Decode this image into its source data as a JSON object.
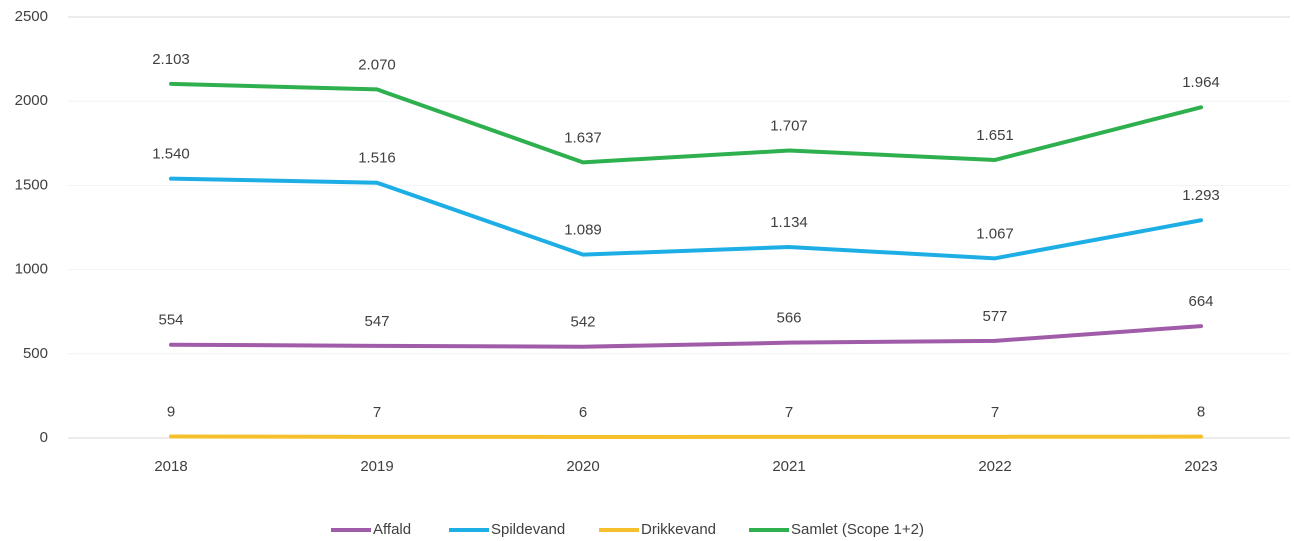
{
  "chart_data": {
    "type": "line",
    "categories": [
      "2018",
      "2019",
      "2020",
      "2021",
      "2022",
      "2023"
    ],
    "series": [
      {
        "name": "Affald",
        "color": "#a05ca8",
        "values": [
          554,
          547,
          542,
          566,
          577,
          664
        ]
      },
      {
        "name": "Spildevand",
        "color": "#1eaee6",
        "values": [
          1540,
          1516,
          1089,
          1134,
          1067,
          1293
        ],
        "value_labels": [
          "1.540",
          "1.516",
          "1.089",
          "1.134",
          "1.067",
          "1.293"
        ]
      },
      {
        "name": "Drikkevand",
        "color": "#f6c02c",
        "values": [
          9,
          7,
          6,
          7,
          7,
          8
        ]
      },
      {
        "name": "Samlet (Scope 1+2)",
        "color": "#2fb04f",
        "values": [
          2103,
          2070,
          1637,
          1707,
          1651,
          1964
        ],
        "value_labels": [
          "2.103",
          "2.070",
          "1.637",
          "1.707",
          "1.651",
          "1.964"
        ]
      }
    ],
    "ylim": [
      0,
      2500
    ],
    "yticks": [
      0,
      500,
      1000,
      1500,
      2000,
      2500
    ],
    "grid": true
  }
}
